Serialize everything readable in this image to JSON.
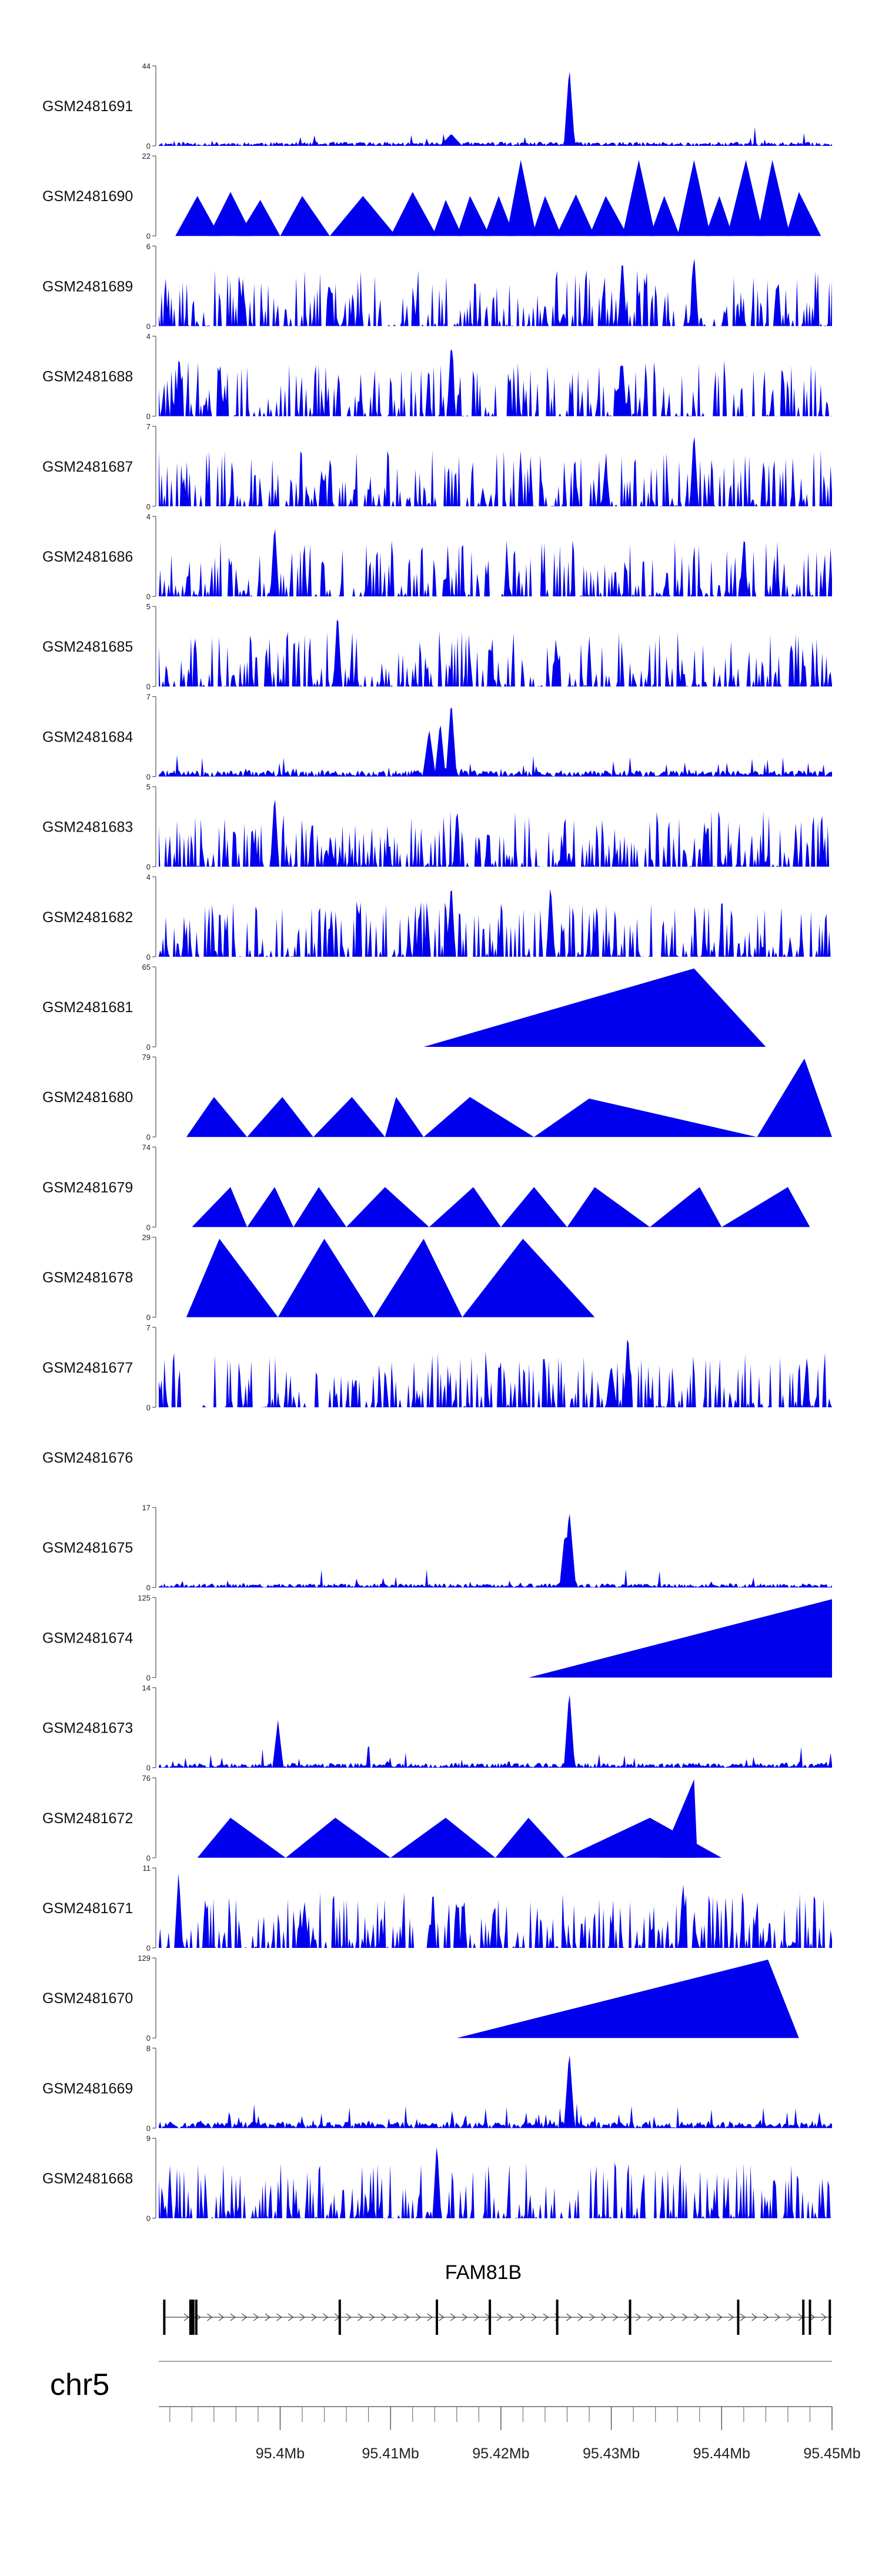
{
  "chart_data": {
    "type": "area",
    "title": "",
    "colors": {
      "track_fill": "#0000ee",
      "axis": "#555555",
      "text": "#111111"
    },
    "x_axis": {
      "chromosome": "chr5",
      "range_mb": [
        95.389,
        95.45
      ],
      "tick_labels": [
        "95.4Mb",
        "95.41Mb",
        "95.42Mb",
        "95.43Mb",
        "95.44Mb",
        "95.45Mb"
      ],
      "tick_values_mb": [
        95.4,
        95.41,
        95.42,
        95.43,
        95.44,
        95.45
      ]
    },
    "gene": {
      "name": "FAM81B",
      "strand": "+",
      "exons_mb": [
        95.3895,
        95.392,
        95.3924,
        95.4054,
        95.4142,
        95.419,
        95.4251,
        95.4317,
        95.4415,
        95.4474,
        95.448,
        95.4498
      ]
    },
    "tracks": [
      {
        "sample": "GSM2481691",
        "ymax": "44",
        "ymin": "0",
        "style": "noise",
        "density": 0.15,
        "base": 0.05,
        "seed": 11,
        "spikes": [
          [
            95.4262,
            1.0,
            0.0005
          ],
          [
            95.4155,
            0.15,
            0.001
          ]
        ]
      },
      {
        "sample": "GSM2481690",
        "ymax": "22",
        "ymin": "0",
        "style": "triangles",
        "peaks": [
          [
            95.3905,
            95.3925,
            95.3945,
            0.5
          ],
          [
            95.3935,
            95.3955,
            95.3975,
            0.55
          ],
          [
            95.3962,
            95.3982,
            95.4,
            0.45
          ],
          [
            95.4,
            95.402,
            95.4045,
            0.5
          ],
          [
            95.4045,
            95.4075,
            95.4105,
            0.5
          ],
          [
            95.41,
            95.412,
            95.4142,
            0.55
          ],
          [
            95.4138,
            95.415,
            95.4165,
            0.45
          ],
          [
            95.416,
            95.4172,
            95.419,
            0.5
          ],
          [
            95.4185,
            95.4198,
            95.4212,
            0.5
          ],
          [
            95.4205,
            95.4218,
            95.4232,
            0.95
          ],
          [
            95.4228,
            95.424,
            95.4255,
            0.5
          ],
          [
            95.425,
            95.4268,
            95.4285,
            0.52
          ],
          [
            95.428,
            95.4295,
            95.4315,
            0.5
          ],
          [
            95.431,
            95.4325,
            95.434,
            0.95
          ],
          [
            95.4335,
            95.4348,
            95.4362,
            0.5
          ],
          [
            95.436,
            95.4375,
            95.439,
            0.95
          ],
          [
            95.4385,
            95.4398,
            95.441,
            0.5
          ],
          [
            95.4405,
            95.4422,
            95.4438,
            0.95
          ],
          [
            95.4432,
            95.4446,
            95.4462,
            0.95
          ],
          [
            95.4458,
            95.447,
            95.449,
            0.55
          ]
        ]
      },
      {
        "sample": "GSM2481689",
        "ymax": "6",
        "ymin": "0",
        "style": "spiky",
        "density": 0.55,
        "base": 0.0,
        "seed": 23,
        "spikes": [
          [
            95.4375,
            0.95,
            0.0004
          ],
          [
            95.431,
            0.9,
            0.0004
          ]
        ]
      },
      {
        "sample": "GSM2481688",
        "ymax": "4",
        "ymin": "0",
        "style": "spiky",
        "density": 0.5,
        "base": 0.0,
        "seed": 37,
        "spikes": [
          [
            95.4155,
            0.98,
            0.0004
          ],
          [
            95.431,
            0.75,
            0.0004
          ]
        ]
      },
      {
        "sample": "GSM2481687",
        "ymax": "7",
        "ymin": "0",
        "style": "spiky",
        "density": 0.5,
        "base": 0.0,
        "seed": 41,
        "spikes": [
          [
            95.4375,
            0.98,
            0.0004
          ],
          [
            95.4295,
            0.6,
            0.0004
          ]
        ]
      },
      {
        "sample": "GSM2481686",
        "ymax": "4",
        "ymin": "0",
        "style": "spiky",
        "density": 0.5,
        "base": 0.0,
        "seed": 53,
        "spikes": [
          [
            95.3995,
            0.95,
            0.0004
          ],
          [
            95.442,
            0.7,
            0.0004
          ]
        ]
      },
      {
        "sample": "GSM2481685",
        "ymax": "5",
        "ymin": "0",
        "style": "spiky",
        "density": 0.55,
        "base": 0.0,
        "seed": 61,
        "spikes": [
          [
            95.4052,
            0.98,
            0.0004
          ]
        ]
      },
      {
        "sample": "GSM2481684",
        "ymax": "7",
        "ymin": "0",
        "style": "noise",
        "density": 0.4,
        "base": 0.08,
        "seed": 71,
        "spikes": [
          [
            95.4155,
            0.98,
            0.0005
          ],
          [
            95.4135,
            0.6,
            0.0006
          ],
          [
            95.4145,
            0.7,
            0.0005
          ]
        ]
      },
      {
        "sample": "GSM2481683",
        "ymax": "5",
        "ymin": "0",
        "style": "spiky",
        "density": 0.6,
        "base": 0.0,
        "seed": 83,
        "spikes": [
          [
            95.3995,
            0.95,
            0.0004
          ]
        ]
      },
      {
        "sample": "GSM2481682",
        "ymax": "4",
        "ymin": "0",
        "style": "spiky",
        "density": 0.55,
        "base": 0.0,
        "seed": 97,
        "spikes": [
          [
            95.4155,
            0.98,
            0.0004
          ],
          [
            95.4245,
            0.95,
            0.0004
          ]
        ]
      },
      {
        "sample": "GSM2481681",
        "ymax": "65",
        "ymin": "0",
        "style": "triangles",
        "peaks": [
          [
            95.413,
            95.4375,
            95.444,
            0.98
          ]
        ]
      },
      {
        "sample": "GSM2481680",
        "ymax": "79",
        "ymin": "0",
        "style": "triangles",
        "peaks": [
          [
            95.3915,
            95.394,
            95.397,
            0.5
          ],
          [
            95.397,
            95.4002,
            95.403,
            0.5
          ],
          [
            95.403,
            95.4065,
            95.4095,
            0.5
          ],
          [
            95.4095,
            95.4105,
            95.413,
            0.5
          ],
          [
            95.413,
            95.4172,
            95.423,
            0.5
          ],
          [
            95.423,
            95.428,
            95.4432,
            0.48
          ],
          [
            95.4432,
            95.4475,
            95.45,
            0.98
          ]
        ]
      },
      {
        "sample": "GSM2481679",
        "ymax": "74",
        "ymin": "0",
        "style": "triangles",
        "peaks": [
          [
            95.392,
            95.3955,
            95.397,
            0.5
          ],
          [
            95.397,
            95.3995,
            95.4012,
            0.5
          ],
          [
            95.4012,
            95.4035,
            95.406,
            0.5
          ],
          [
            95.406,
            95.4095,
            95.4135,
            0.5
          ],
          [
            95.4135,
            95.4175,
            95.42,
            0.5
          ],
          [
            95.42,
            95.423,
            95.426,
            0.5
          ],
          [
            95.426,
            95.4285,
            95.4335,
            0.5
          ],
          [
            95.4335,
            95.438,
            95.44,
            0.5
          ],
          [
            95.44,
            95.446,
            95.448,
            0.5
          ]
        ]
      },
      {
        "sample": "GSM2481678",
        "ymax": "29",
        "ymin": "0",
        "style": "triangles",
        "peaks": [
          [
            95.3915,
            95.3945,
            95.3998,
            0.98
          ],
          [
            95.3998,
            95.404,
            95.4085,
            0.98
          ],
          [
            95.4085,
            95.413,
            95.4165,
            0.98
          ],
          [
            95.4165,
            95.422,
            95.4285,
            0.98
          ]
        ]
      },
      {
        "sample": "GSM2481677",
        "ymax": "7",
        "ymin": "0",
        "style": "spiky",
        "density": 0.5,
        "base": 0.05,
        "seed": 103,
        "spikes": [
          [
            95.4315,
            0.98,
            0.0004
          ],
          [
            95.43,
            0.55,
            0.0005
          ]
        ]
      },
      {
        "sample": "GSM2481676",
        "ymax": "",
        "ymin": "",
        "style": "empty"
      },
      {
        "sample": "GSM2481675",
        "ymax": "17",
        "ymin": "0",
        "style": "noise",
        "density": 0.35,
        "base": 0.05,
        "seed": 113,
        "spikes": [
          [
            95.4262,
            0.98,
            0.0006
          ],
          [
            95.4258,
            0.7,
            0.0005
          ]
        ]
      },
      {
        "sample": "GSM2481674",
        "ymax": "125",
        "ymin": "0",
        "style": "triangles",
        "peaks": [
          [
            95.4225,
            95.45,
            95.45,
            0.98
          ]
        ]
      },
      {
        "sample": "GSM2481673",
        "ymax": "14",
        "ymin": "0",
        "style": "noise",
        "density": 0.4,
        "base": 0.06,
        "seed": 127,
        "spikes": [
          [
            95.4262,
            0.98,
            0.0005
          ],
          [
            95.3998,
            0.6,
            0.0005
          ]
        ]
      },
      {
        "sample": "GSM2481672",
        "ymax": "76",
        "ymin": "0",
        "style": "triangles",
        "peaks": [
          [
            95.3925,
            95.3955,
            95.4005,
            0.5
          ],
          [
            95.4005,
            95.405,
            95.41,
            0.5
          ],
          [
            95.41,
            95.415,
            95.4195,
            0.5
          ],
          [
            95.4195,
            95.4225,
            95.4258,
            0.5
          ],
          [
            95.4258,
            95.4335,
            95.44,
            0.5
          ],
          [
            95.4345,
            95.4375,
            95.4378,
            0.98
          ]
        ]
      },
      {
        "sample": "GSM2481671",
        "ymax": "11",
        "ymin": "0",
        "style": "spiky",
        "density": 0.55,
        "base": 0.05,
        "seed": 131,
        "spikes": [
          [
            95.3908,
            0.98,
            0.0004
          ],
          [
            95.4022,
            0.6,
            0.0004
          ],
          [
            95.4365,
            0.85,
            0.0004
          ]
        ]
      },
      {
        "sample": "GSM2481670",
        "ymax": "129",
        "ymin": "0",
        "style": "triangles",
        "peaks": [
          [
            95.416,
            95.4442,
            95.447,
            0.98
          ]
        ]
      },
      {
        "sample": "GSM2481669",
        "ymax": "8",
        "ymin": "0",
        "style": "noise",
        "density": 0.45,
        "base": 0.08,
        "seed": 139,
        "spikes": [
          [
            95.4262,
            0.98,
            0.0005
          ]
        ]
      },
      {
        "sample": "GSM2481668",
        "ymax": "9",
        "ymin": "0",
        "style": "spiky",
        "density": 0.55,
        "base": 0.0,
        "seed": 149,
        "spikes": [
          [
            95.4142,
            0.98,
            0.0004
          ]
        ]
      }
    ]
  }
}
